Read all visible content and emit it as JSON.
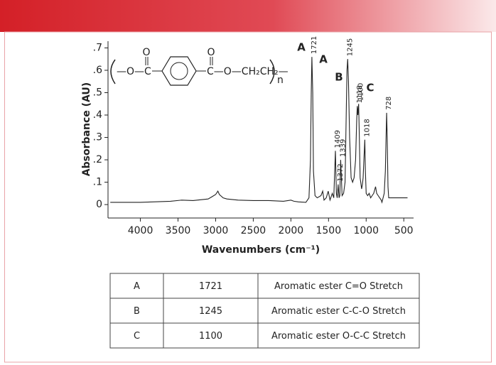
{
  "chart_data": {
    "type": "line",
    "y_label": "Absorbance (AU)",
    "x_label": "Wavenumbers (cm⁻¹)",
    "xlim": [
      4430,
      370
    ],
    "ylim": [
      -0.06,
      0.73
    ],
    "xticks": [
      4000,
      3500,
      3000,
      2500,
      2000,
      1500,
      1000,
      500
    ],
    "yticks": [
      {
        "value": 0.7,
        "label": ".7"
      },
      {
        "value": 0.6,
        "label": ".6"
      },
      {
        "value": 0.5,
        "label": ".5"
      },
      {
        "value": 0.4,
        "label": ".4"
      },
      {
        "value": 0.3,
        "label": ".3"
      },
      {
        "value": 0.2,
        "label": ".2"
      },
      {
        "value": 0.1,
        "label": ".1"
      },
      0
    ],
    "color": "#222222",
    "x": [
      4400,
      4000,
      3600,
      3450,
      3300,
      3100,
      3050,
      3000,
      2970,
      2950,
      2900,
      2850,
      2700,
      2500,
      2300,
      2100,
      2000,
      1960,
      1900,
      1800,
      1760,
      1740,
      1730,
      1721,
      1710,
      1700,
      1680,
      1650,
      1600,
      1578,
      1560,
      1530,
      1504,
      1480,
      1450,
      1430,
      1409,
      1395,
      1385,
      1372,
      1360,
      1350,
      1339,
      1320,
      1300,
      1280,
      1265,
      1255,
      1245,
      1235,
      1220,
      1200,
      1180,
      1160,
      1140,
      1125,
      1118,
      1110,
      1100,
      1090,
      1080,
      1060,
      1050,
      1040,
      1030,
      1018,
      1010,
      1000,
      980,
      960,
      940,
      920,
      900,
      875,
      860,
      840,
      820,
      800,
      790,
      760,
      745,
      735,
      728,
      720,
      710,
      700,
      650,
      600,
      550,
      500,
      450
    ],
    "values": [
      0.01,
      0.01,
      0.015,
      0.02,
      0.018,
      0.025,
      0.035,
      0.045,
      0.06,
      0.045,
      0.03,
      0.025,
      0.02,
      0.018,
      0.018,
      0.015,
      0.02,
      0.015,
      0.012,
      0.01,
      0.03,
      0.2,
      0.5,
      0.66,
      0.5,
      0.15,
      0.04,
      0.03,
      0.04,
      0.06,
      0.02,
      0.03,
      0.06,
      0.02,
      0.05,
      0.03,
      0.24,
      0.05,
      0.03,
      0.09,
      0.03,
      0.04,
      0.2,
      0.04,
      0.05,
      0.1,
      0.4,
      0.6,
      0.65,
      0.55,
      0.3,
      0.12,
      0.1,
      0.12,
      0.2,
      0.38,
      0.44,
      0.4,
      0.45,
      0.3,
      0.12,
      0.07,
      0.09,
      0.12,
      0.2,
      0.29,
      0.15,
      0.05,
      0.04,
      0.05,
      0.03,
      0.04,
      0.05,
      0.08,
      0.05,
      0.04,
      0.03,
      0.02,
      0.01,
      0.05,
      0.15,
      0.3,
      0.41,
      0.3,
      0.08,
      0.03,
      0.03,
      0.03,
      0.03,
      0.03,
      0.03
    ],
    "peak_labels": [
      1721,
      1409,
      1372,
      1339,
      1245,
      1118,
      1100,
      1018,
      728
    ],
    "letters": [
      "A",
      "A",
      "B",
      "C"
    ],
    "formula": {
      "carbonyl_left": "O",
      "left": "—O—C",
      "carbonyl_right": "O",
      "right": "C—O—CH₂CH₂—",
      "repeat": "n"
    }
  },
  "table": {
    "rows": [
      [
        "A",
        "1721",
        "Aromatic ester C=O Stretch"
      ],
      [
        "B",
        "1245",
        "Aromatic ester C-C-O Stretch"
      ],
      [
        "C",
        "1100",
        "Aromatic ester O-C-C Stretch"
      ]
    ]
  }
}
